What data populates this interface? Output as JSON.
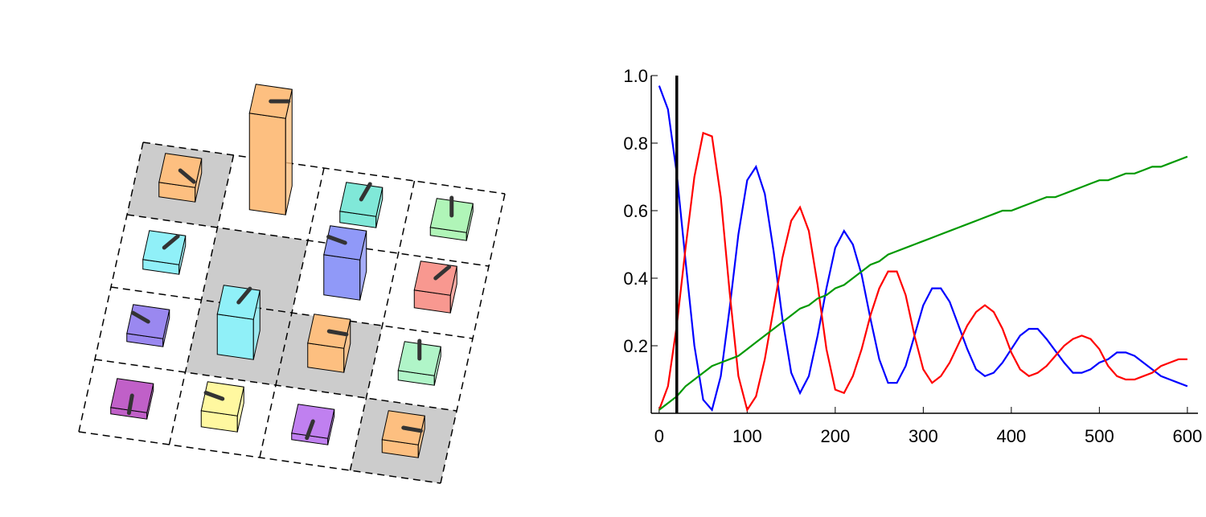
{
  "chart_data": {
    "type": "line",
    "x": [
      0,
      10,
      20,
      30,
      40,
      50,
      60,
      70,
      80,
      90,
      100,
      110,
      120,
      130,
      140,
      150,
      160,
      170,
      180,
      190,
      200,
      210,
      220,
      230,
      240,
      250,
      260,
      270,
      280,
      290,
      300,
      310,
      320,
      330,
      340,
      350,
      360,
      370,
      380,
      390,
      400,
      410,
      420,
      430,
      440,
      450,
      460,
      470,
      480,
      490,
      500,
      510,
      520,
      530,
      540,
      550,
      560,
      570,
      580,
      590,
      600
    ],
    "series": [
      {
        "color": "#0000ff",
        "values": [
          0.97,
          0.9,
          0.71,
          0.45,
          0.2,
          0.04,
          0.01,
          0.11,
          0.31,
          0.53,
          0.69,
          0.73,
          0.65,
          0.48,
          0.28,
          0.12,
          0.06,
          0.11,
          0.23,
          0.37,
          0.49,
          0.54,
          0.5,
          0.41,
          0.28,
          0.16,
          0.09,
          0.09,
          0.14,
          0.23,
          0.32,
          0.37,
          0.37,
          0.33,
          0.26,
          0.19,
          0.13,
          0.11,
          0.12,
          0.15,
          0.19,
          0.23,
          0.25,
          0.25,
          0.22,
          0.185,
          0.15,
          0.12,
          0.12,
          0.13,
          0.15,
          0.16,
          0.18,
          0.18,
          0.17,
          0.15,
          0.13,
          0.11,
          0.1,
          0.09,
          0.08
        ]
      },
      {
        "color": "#ff0000",
        "values": [
          0.01,
          0.08,
          0.26,
          0.49,
          0.7,
          0.83,
          0.82,
          0.64,
          0.36,
          0.11,
          0.01,
          0.05,
          0.16,
          0.31,
          0.46,
          0.57,
          0.61,
          0.54,
          0.38,
          0.19,
          0.07,
          0.06,
          0.11,
          0.19,
          0.29,
          0.37,
          0.42,
          0.42,
          0.35,
          0.23,
          0.13,
          0.09,
          0.11,
          0.15,
          0.205,
          0.26,
          0.3,
          0.32,
          0.3,
          0.25,
          0.18,
          0.13,
          0.11,
          0.12,
          0.14,
          0.17,
          0.2,
          0.22,
          0.23,
          0.22,
          0.19,
          0.14,
          0.11,
          0.1,
          0.1,
          0.11,
          0.12,
          0.14,
          0.15,
          0.16,
          0.16
        ]
      },
      {
        "color": "#009900",
        "values": [
          0.01,
          0.03,
          0.05,
          0.08,
          0.1,
          0.12,
          0.14,
          0.15,
          0.16,
          0.17,
          0.19,
          0.21,
          0.23,
          0.25,
          0.27,
          0.29,
          0.31,
          0.32,
          0.34,
          0.35,
          0.37,
          0.38,
          0.4,
          0.42,
          0.44,
          0.45,
          0.47,
          0.48,
          0.49,
          0.5,
          0.51,
          0.52,
          0.53,
          0.54,
          0.55,
          0.56,
          0.57,
          0.58,
          0.59,
          0.6,
          0.6,
          0.61,
          0.62,
          0.63,
          0.64,
          0.64,
          0.65,
          0.66,
          0.67,
          0.68,
          0.69,
          0.69,
          0.7,
          0.71,
          0.71,
          0.72,
          0.73,
          0.73,
          0.74,
          0.75,
          0.76
        ]
      }
    ],
    "vline": 20,
    "xlim": [
      -9,
      612
    ],
    "xticks": [
      0,
      100,
      200,
      300,
      400,
      500,
      600
    ],
    "ylim": [
      0,
      1
    ],
    "yticks": [
      0.2,
      0.4,
      0.6,
      0.8,
      {
        "value": 1,
        "label": "1.0"
      }
    ]
  }
}
